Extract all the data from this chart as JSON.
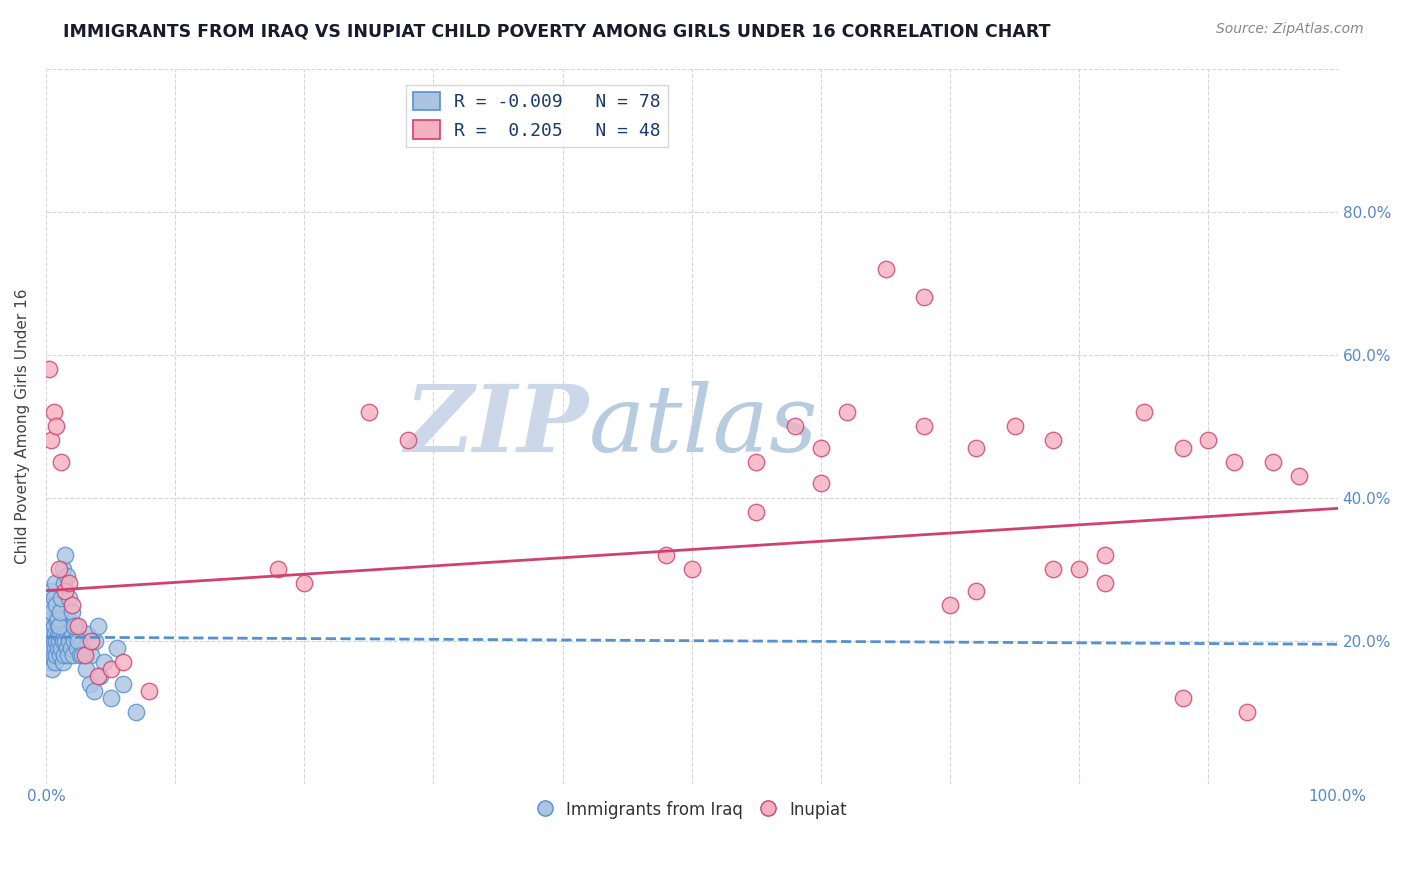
{
  "title": "IMMIGRANTS FROM IRAQ VS INUPIAT CHILD POVERTY AMONG GIRLS UNDER 16 CORRELATION CHART",
  "source": "Source: ZipAtlas.com",
  "ylabel": "Child Poverty Among Girls Under 16",
  "R_iraq": -0.009,
  "N_iraq": 78,
  "R_inupiat": 0.205,
  "N_inupiat": 48,
  "xlim": [
    0.0,
    1.0
  ],
  "ylim": [
    0.0,
    1.0
  ],
  "xticks": [
    0.0,
    0.1,
    0.2,
    0.3,
    0.4,
    0.5,
    0.6,
    0.7,
    0.8,
    0.9,
    1.0
  ],
  "yticks": [
    0.0,
    0.2,
    0.4,
    0.6,
    0.8,
    1.0
  ],
  "xticklabels": [
    "0.0%",
    "",
    "",
    "",
    "",
    "",
    "",
    "",
    "",
    "",
    "100.0%"
  ],
  "yticklabels": [
    "",
    "20.0%",
    "40.0%",
    "60.0%",
    "80.0%",
    ""
  ],
  "color_iraq": "#aac4e2",
  "color_inupiat": "#f5b0c0",
  "trendline_iraq_color": "#5590d0",
  "trendline_inupiat_color": "#d04070",
  "background_color": "#ffffff",
  "grid_color": "#cccccc",
  "watermark_zip": "ZIP",
  "watermark_atlas": "atlas",
  "watermark_color_zip": "#c8d8ec",
  "watermark_color_atlas": "#b0c8e0",
  "title_color": "#1a1a2e",
  "legend_text_color": "#1a3a6e",
  "iraq_scatter_x": [
    0.002,
    0.003,
    0.003,
    0.004,
    0.004,
    0.005,
    0.005,
    0.005,
    0.006,
    0.006,
    0.006,
    0.007,
    0.007,
    0.007,
    0.008,
    0.008,
    0.008,
    0.009,
    0.009,
    0.01,
    0.01,
    0.011,
    0.011,
    0.012,
    0.012,
    0.013,
    0.013,
    0.014,
    0.014,
    0.015,
    0.015,
    0.016,
    0.016,
    0.017,
    0.017,
    0.018,
    0.019,
    0.02,
    0.021,
    0.022,
    0.023,
    0.024,
    0.025,
    0.026,
    0.028,
    0.03,
    0.032,
    0.035,
    0.038,
    0.04,
    0.003,
    0.004,
    0.005,
    0.006,
    0.007,
    0.008,
    0.009,
    0.01,
    0.011,
    0.012,
    0.013,
    0.014,
    0.015,
    0.016,
    0.018,
    0.02,
    0.022,
    0.025,
    0.028,
    0.031,
    0.034,
    0.037,
    0.042,
    0.045,
    0.05,
    0.055,
    0.06,
    0.07
  ],
  "iraq_scatter_y": [
    0.2,
    0.17,
    0.22,
    0.18,
    0.21,
    0.19,
    0.23,
    0.16,
    0.2,
    0.18,
    0.22,
    0.17,
    0.21,
    0.19,
    0.2,
    0.23,
    0.18,
    0.21,
    0.19,
    0.2,
    0.22,
    0.18,
    0.21,
    0.19,
    0.23,
    0.2,
    0.17,
    0.21,
    0.18,
    0.2,
    0.22,
    0.19,
    0.21,
    0.18,
    0.23,
    0.2,
    0.19,
    0.21,
    0.18,
    0.2,
    0.22,
    0.19,
    0.21,
    0.18,
    0.2,
    0.19,
    0.21,
    0.18,
    0.2,
    0.22,
    0.25,
    0.27,
    0.24,
    0.26,
    0.28,
    0.25,
    0.23,
    0.22,
    0.24,
    0.26,
    0.3,
    0.28,
    0.32,
    0.29,
    0.26,
    0.24,
    0.22,
    0.2,
    0.18,
    0.16,
    0.14,
    0.13,
    0.15,
    0.17,
    0.12,
    0.19,
    0.14,
    0.1
  ],
  "inupiat_scatter_x": [
    0.002,
    0.004,
    0.006,
    0.008,
    0.01,
    0.012,
    0.015,
    0.018,
    0.02,
    0.025,
    0.03,
    0.035,
    0.04,
    0.05,
    0.06,
    0.08,
    0.18,
    0.2,
    0.25,
    0.28,
    0.48,
    0.5,
    0.55,
    0.58,
    0.6,
    0.62,
    0.65,
    0.68,
    0.7,
    0.72,
    0.75,
    0.78,
    0.8,
    0.82,
    0.85,
    0.88,
    0.9,
    0.92,
    0.95,
    0.97,
    0.55,
    0.6,
    0.68,
    0.72,
    0.78,
    0.82,
    0.88,
    0.93
  ],
  "inupiat_scatter_y": [
    0.58,
    0.48,
    0.52,
    0.5,
    0.3,
    0.45,
    0.27,
    0.28,
    0.25,
    0.22,
    0.18,
    0.2,
    0.15,
    0.16,
    0.17,
    0.13,
    0.3,
    0.28,
    0.52,
    0.48,
    0.32,
    0.3,
    0.45,
    0.5,
    0.47,
    0.52,
    0.72,
    0.68,
    0.25,
    0.27,
    0.5,
    0.48,
    0.3,
    0.32,
    0.52,
    0.47,
    0.48,
    0.45,
    0.45,
    0.43,
    0.38,
    0.42,
    0.5,
    0.47,
    0.3,
    0.28,
    0.12,
    0.1
  ],
  "trendline_iraq_x0": 0.0,
  "trendline_iraq_x1": 1.0,
  "trendline_iraq_y0": 0.205,
  "trendline_iraq_y1": 0.195,
  "trendline_inupiat_x0": 0.0,
  "trendline_inupiat_x1": 1.0,
  "trendline_inupiat_y0": 0.27,
  "trendline_inupiat_y1": 0.385
}
